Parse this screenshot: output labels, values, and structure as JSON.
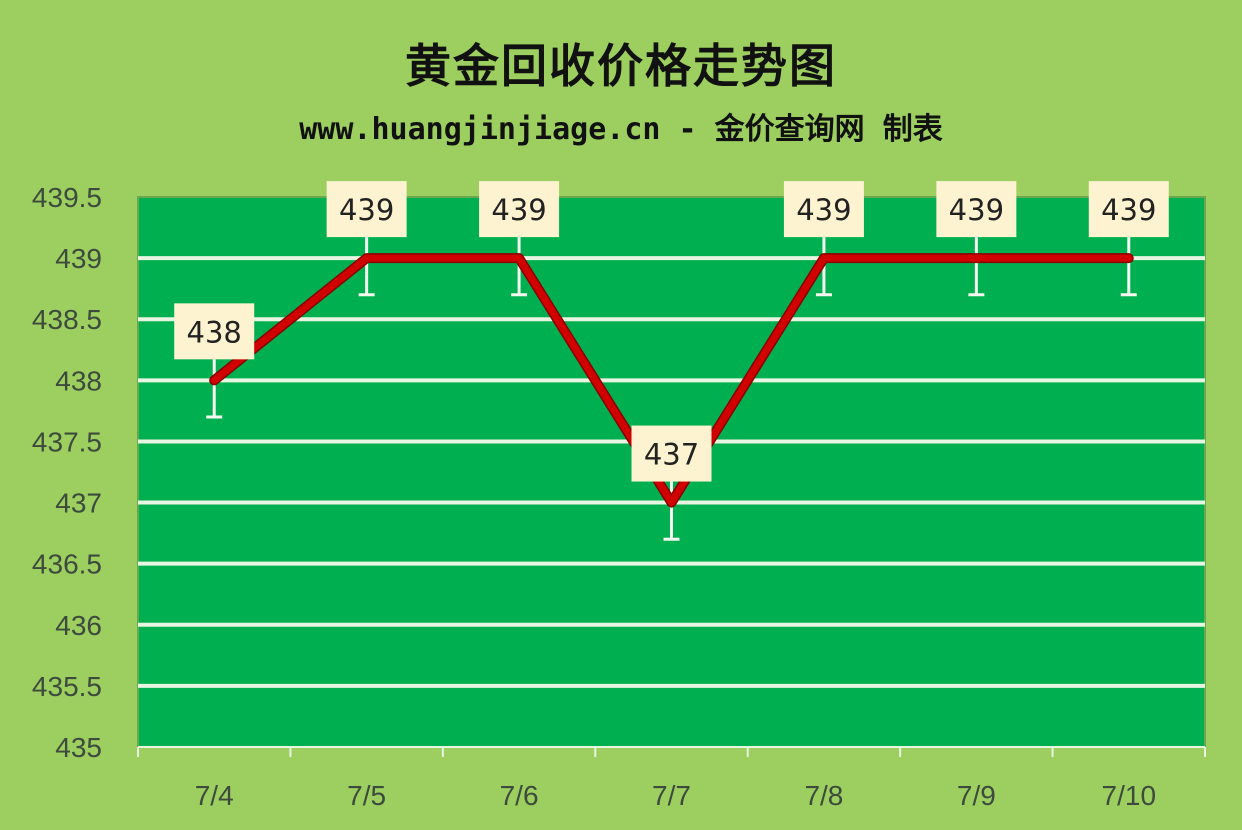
{
  "chart_data": {
    "type": "line",
    "title": "黄金回收价格走势图",
    "subtitle": "www.huangjinjiage.cn - 金价查询网 制表",
    "categories": [
      "7/4",
      "7/5",
      "7/6",
      "7/7",
      "7/8",
      "7/9",
      "7/10"
    ],
    "values": [
      438,
      439,
      439,
      437,
      439,
      439,
      439
    ],
    "data_labels": [
      "438",
      "439",
      "439",
      "437",
      "439",
      "439",
      "439"
    ],
    "error_bar": 0.3,
    "ylim": [
      435,
      439.5
    ],
    "yticks": [
      "435",
      "435.5",
      "436",
      "436.5",
      "437",
      "437.5",
      "438",
      "438.5",
      "439",
      "439.5"
    ],
    "grid": true,
    "legend": "none",
    "colors": {
      "background": "#9ccf5f",
      "plot": "#00b050",
      "line": "#d00000",
      "grid": "#e8f5e0",
      "label_bg": "#fdf3d0"
    }
  }
}
